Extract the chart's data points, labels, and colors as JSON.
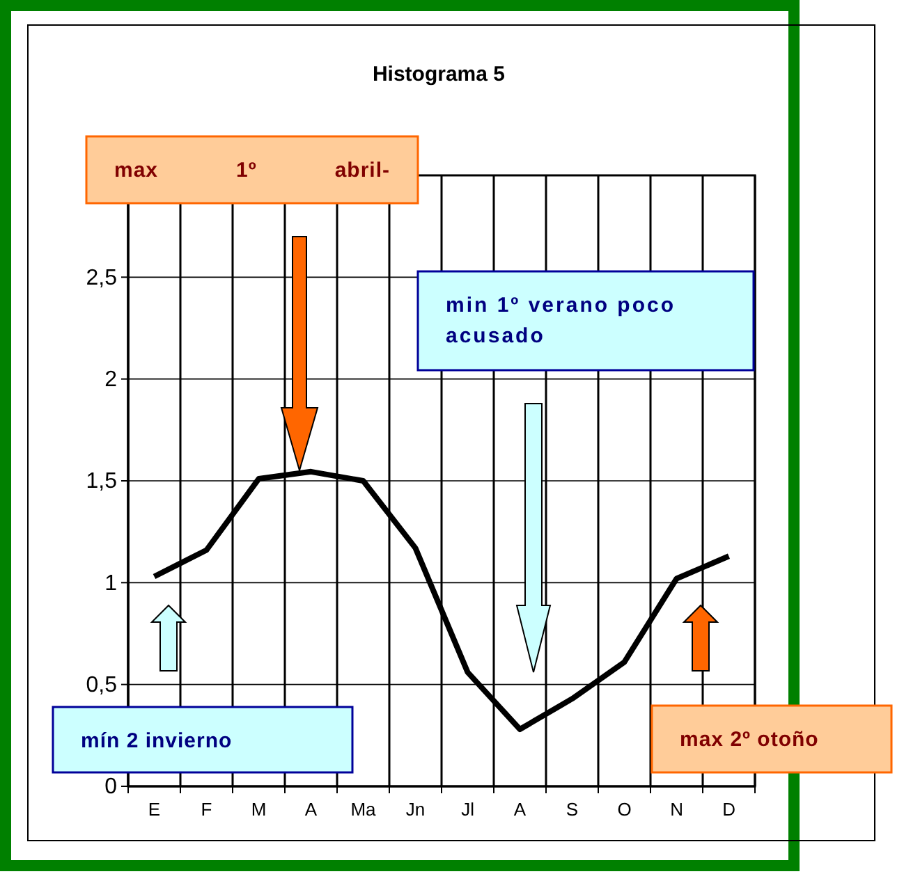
{
  "chart_data": {
    "type": "line",
    "title": "Histograma 5",
    "categories": [
      "E",
      "F",
      "M",
      "A",
      "Ma",
      "Jn",
      "Jl",
      "A",
      "S",
      "O",
      "N",
      "D"
    ],
    "series": [
      {
        "color": "#000000",
        "values": [
          1.03,
          1.16,
          1.51,
          1.545,
          1.5,
          1.17,
          0.56,
          0.28,
          0.43,
          0.61,
          1.02,
          1.13
        ]
      }
    ],
    "ylim": [
      0,
      3
    ],
    "yticks": [
      0,
      {
        "value": 0.5,
        "label": "0,5"
      },
      1,
      {
        "value": 1.5,
        "label": "1,5"
      },
      2,
      {
        "value": 2.5,
        "label": "2,5"
      }
    ],
    "grid": true,
    "marker": "none",
    "line_style": "solid",
    "annotations": [
      "max 1º abril-",
      "min 1º verano poco acusado",
      "mín 2 invierno",
      "max 2º otoño"
    ]
  }
}
